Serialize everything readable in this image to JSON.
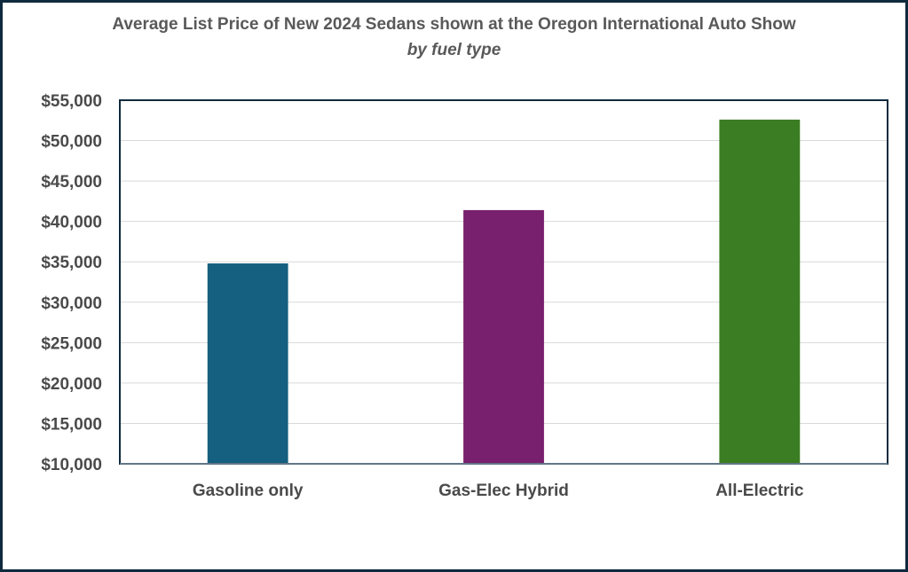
{
  "chart_data": {
    "type": "bar",
    "title": "Average List Price of New 2024 Sedans shown at the Oregon International Auto Show",
    "subtitle": "by fuel type",
    "xlabel": "",
    "ylabel": "",
    "categories": [
      "Gasoline only",
      "Gas-Elec Hybrid",
      "All-Electric"
    ],
    "values": [
      34800,
      41400,
      52600
    ],
    "colors": [
      "#155f80",
      "#78206e",
      "#3a7d22"
    ],
    "ylim": [
      10000,
      55000
    ],
    "yticks": [
      10000,
      15000,
      20000,
      25000,
      30000,
      35000,
      40000,
      45000,
      50000,
      55000
    ],
    "ytick_labels": [
      "$10,000",
      "$15,000",
      "$20,000",
      "$25,000",
      "$30,000",
      "$35,000",
      "$40,000",
      "$45,000",
      "$50,000",
      "$55,000"
    ],
    "grid": true,
    "legend": "none"
  }
}
